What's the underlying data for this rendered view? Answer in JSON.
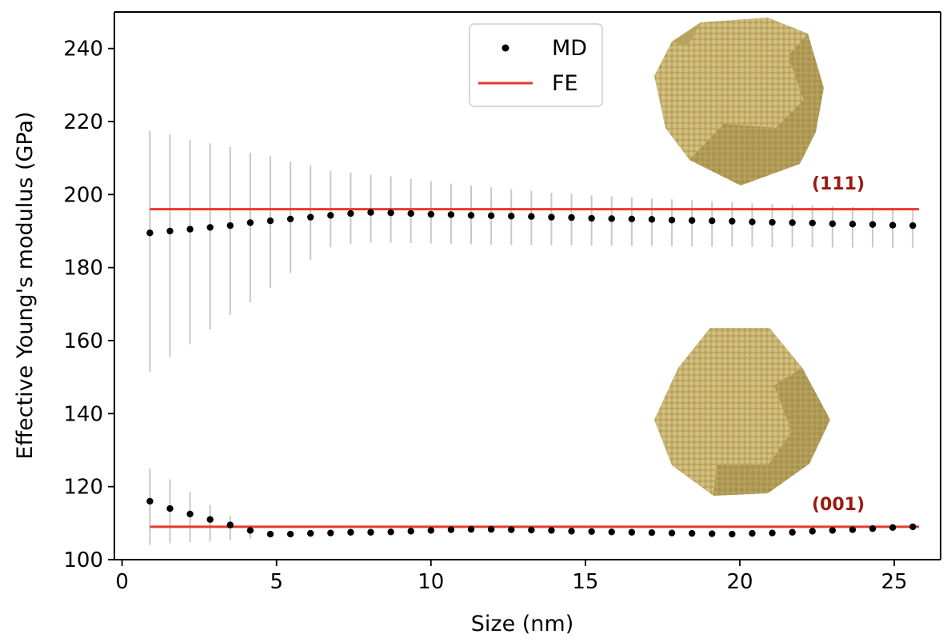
{
  "chart_data": {
    "type": "scatter",
    "xlabel": "Size (nm)",
    "ylabel": "Effective Young's modulus (GPa)",
    "xlim": [
      -0.25,
      26.5
    ],
    "ylim": [
      100,
      250
    ],
    "xticks": [
      0,
      5,
      10,
      15,
      20,
      25
    ],
    "yticks": [
      100,
      120,
      140,
      160,
      180,
      200,
      220,
      240
    ],
    "grid": false,
    "legend": {
      "placement": "top-center",
      "entries": [
        "MD",
        "FE"
      ]
    },
    "colors": {
      "md": "#000000",
      "fe": "#e8392b",
      "errorbar": "#c8c8c8",
      "annotation": "#9b1a0e",
      "particle": "#c9b472",
      "particle_dark": "#8a7838"
    },
    "annotations": [
      "(111)",
      "(001)"
    ],
    "series": [
      {
        "name": "MD",
        "group": "(111)",
        "x": [
          0.9,
          1.55,
          2.2,
          2.85,
          3.5,
          4.15,
          4.8,
          5.45,
          6.1,
          6.75,
          7.4,
          8.05,
          8.7,
          9.35,
          10.0,
          10.65,
          11.3,
          11.95,
          12.6,
          13.25,
          13.9,
          14.55,
          15.2,
          15.85,
          16.5,
          17.15,
          17.8,
          18.45,
          19.1,
          19.75,
          20.4,
          21.05,
          21.7,
          22.35,
          23.0,
          23.65,
          24.3,
          24.95,
          25.6
        ],
        "y": [
          189.5,
          190.0,
          190.5,
          191.0,
          191.5,
          192.3,
          192.8,
          193.3,
          193.8,
          194.3,
          194.8,
          195.1,
          195.0,
          194.8,
          194.6,
          194.5,
          194.3,
          194.2,
          194.1,
          194.0,
          193.8,
          193.7,
          193.5,
          193.4,
          193.3,
          193.2,
          193.0,
          192.9,
          192.8,
          192.7,
          192.5,
          192.4,
          192.3,
          192.2,
          192.0,
          191.9,
          191.8,
          191.6,
          191.5
        ],
        "yerr_low": [
          151.5,
          155.5,
          159.0,
          163.0,
          167.0,
          170.5,
          174.5,
          178.5,
          182.0,
          185.5,
          186.5,
          186.8,
          186.8,
          186.7,
          186.6,
          186.5,
          186.4,
          186.3,
          186.2,
          186.2,
          186.1,
          186.1,
          186.0,
          186.0,
          185.9,
          185.9,
          185.8,
          185.8,
          185.7,
          185.7,
          185.7,
          185.6,
          185.6,
          185.6,
          185.5,
          185.5,
          185.5,
          185.4,
          185.4
        ],
        "yerr_high": [
          217.5,
          216.5,
          215.0,
          214.0,
          213.0,
          211.5,
          210.5,
          209.0,
          208.0,
          206.5,
          206.0,
          205.5,
          205.0,
          204.3,
          203.7,
          203.0,
          202.5,
          202.0,
          201.5,
          201.0,
          200.5,
          200.2,
          199.8,
          199.5,
          199.2,
          198.9,
          198.7,
          198.4,
          198.1,
          197.9,
          197.6,
          197.4,
          197.2,
          197.0,
          196.8,
          196.6,
          196.4,
          196.2,
          196.0
        ]
      },
      {
        "name": "MD",
        "group": "(001)",
        "x": [
          0.9,
          1.55,
          2.2,
          2.85,
          3.5,
          4.15,
          4.8,
          5.45,
          6.1,
          6.75,
          7.4,
          8.05,
          8.7,
          9.35,
          10.0,
          10.65,
          11.3,
          11.95,
          12.6,
          13.25,
          13.9,
          14.55,
          15.2,
          15.85,
          16.5,
          17.15,
          17.8,
          18.45,
          19.1,
          19.75,
          20.4,
          21.05,
          21.7,
          22.35,
          23.0,
          23.65,
          24.3,
          24.95,
          25.6
        ],
        "y": [
          116.0,
          114.0,
          112.5,
          111.0,
          109.5,
          108.0,
          107.0,
          107.0,
          107.2,
          107.3,
          107.5,
          107.5,
          107.6,
          107.8,
          108.0,
          108.2,
          108.3,
          108.3,
          108.2,
          108.1,
          108.0,
          107.8,
          107.7,
          107.6,
          107.5,
          107.4,
          107.3,
          107.2,
          107.1,
          107.0,
          107.2,
          107.3,
          107.5,
          107.8,
          108.0,
          108.2,
          108.5,
          108.8,
          109.0
        ],
        "yerr_low": [
          104.0,
          104.5,
          104.8,
          105.0,
          105.3,
          105.8,
          null,
          null,
          null,
          null,
          null,
          null,
          null,
          null,
          null,
          null,
          null,
          null,
          null,
          null,
          null,
          null,
          null,
          null,
          null,
          null,
          null,
          null,
          null,
          null,
          null,
          null,
          null,
          null,
          null,
          null,
          null,
          null,
          null
        ],
        "yerr_high": [
          125.0,
          122.0,
          118.5,
          115.0,
          112.0,
          109.5,
          null,
          null,
          null,
          null,
          null,
          null,
          null,
          null,
          null,
          null,
          null,
          null,
          null,
          null,
          null,
          null,
          null,
          null,
          null,
          null,
          null,
          null,
          null,
          null,
          null,
          null,
          null,
          null,
          null,
          null,
          null,
          null,
          null
        ]
      },
      {
        "name": "FE",
        "group": "(111)",
        "type": "line",
        "x": [
          0.9,
          25.8
        ],
        "y": [
          196,
          196
        ]
      },
      {
        "name": "FE",
        "group": "(001)",
        "type": "line",
        "x": [
          0.9,
          25.8
        ],
        "y": [
          109,
          109
        ]
      }
    ]
  }
}
